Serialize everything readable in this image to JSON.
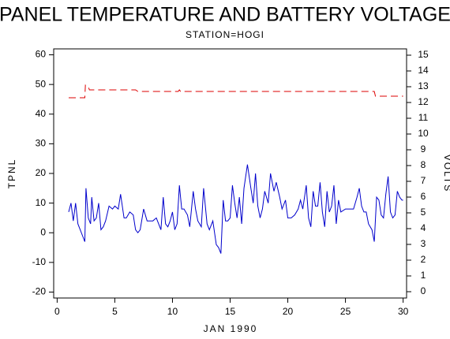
{
  "chart_data": {
    "type": "line",
    "title": "PANEL TEMPERATURE AND BATTERY VOLTAGE",
    "subtitle": "STATION=HOGI",
    "x_label": "JAN 1990",
    "y_label": "TPNL",
    "y2_label": "VOLTS",
    "xlim": [
      -0.3,
      30.3
    ],
    "xticks": [
      0,
      5,
      10,
      15,
      20,
      25,
      30
    ],
    "ylim": [
      -22,
      62
    ],
    "yticks": [
      -20,
      -10,
      0,
      10,
      20,
      30,
      40,
      50,
      60
    ],
    "y2lim": [
      -0.4,
      15.4
    ],
    "y2ticks": [
      0,
      1,
      2,
      3,
      4,
      5,
      6,
      7,
      8,
      9,
      10,
      11,
      12,
      13,
      14,
      15
    ],
    "series": [
      {
        "name": "TPNL",
        "color": "#0000cc",
        "dash": false,
        "x": [
          1.0,
          1.2,
          1.4,
          1.6,
          1.8,
          2.0,
          2.2,
          2.4,
          2.5,
          2.7,
          2.9,
          3.0,
          3.2,
          3.4,
          3.6,
          3.8,
          4.0,
          4.2,
          4.5,
          4.8,
          5.0,
          5.3,
          5.5,
          5.8,
          6.0,
          6.3,
          6.6,
          6.8,
          7.0,
          7.2,
          7.5,
          7.8,
          8.0,
          8.3,
          8.6,
          8.8,
          9.0,
          9.2,
          9.4,
          9.6,
          9.8,
          10.0,
          10.2,
          10.4,
          10.6,
          10.8,
          11.0,
          11.3,
          11.5,
          11.8,
          12.0,
          12.2,
          12.5,
          12.7,
          13.0,
          13.2,
          13.5,
          13.8,
          14.0,
          14.2,
          14.4,
          14.6,
          14.8,
          15.0,
          15.2,
          15.4,
          15.6,
          15.8,
          16.0,
          16.2,
          16.5,
          16.8,
          17.0,
          17.2,
          17.4,
          17.6,
          17.8,
          18.0,
          18.3,
          18.5,
          18.8,
          19.0,
          19.3,
          19.5,
          19.8,
          20.0,
          20.3,
          20.6,
          20.9,
          21.1,
          21.3,
          21.6,
          21.8,
          22.0,
          22.2,
          22.4,
          22.6,
          22.8,
          23.0,
          23.2,
          23.4,
          23.6,
          23.8,
          24.0,
          24.2,
          24.4,
          24.6,
          25.0,
          25.4,
          25.7,
          26.0,
          26.2,
          26.4,
          26.6,
          26.8,
          27.0,
          27.3,
          27.5,
          27.7,
          27.9,
          28.1,
          28.3,
          28.5,
          28.7,
          28.9,
          29.1,
          29.3,
          29.5,
          29.7,
          29.9,
          30.0
        ],
        "values": [
          7,
          10,
          4,
          10,
          3,
          1,
          -1,
          -3,
          15,
          5,
          3,
          12,
          4,
          5,
          10,
          1,
          2,
          4,
          9,
          8,
          9,
          8,
          13,
          5,
          5,
          7,
          6,
          1,
          0,
          1,
          8,
          4,
          4,
          4,
          5,
          3,
          1,
          12,
          3,
          2,
          4,
          7,
          1,
          3,
          16,
          8,
          8,
          6,
          2,
          14,
          8,
          4,
          2,
          15,
          3,
          1,
          4,
          -4,
          -5,
          -7,
          11,
          4,
          4,
          5,
          16,
          10,
          5,
          12,
          3,
          15,
          23,
          15,
          10,
          20,
          9,
          5,
          8,
          14,
          10,
          20,
          14,
          17,
          12,
          8,
          11,
          5,
          5,
          6,
          8,
          11,
          8,
          16,
          5,
          2,
          14,
          9,
          9,
          17,
          7,
          2,
          14,
          7,
          9,
          16,
          3,
          11,
          7,
          8,
          8,
          8,
          12,
          15,
          9,
          7,
          7,
          3,
          1,
          -3,
          12,
          11,
          6,
          5,
          13,
          19,
          7,
          5,
          6,
          14,
          12,
          11,
          11
        ]
      },
      {
        "name": "VOLTS",
        "color": "#dd0000",
        "dash": true,
        "axis": "y2",
        "x": [
          1.0,
          2.4,
          2.45,
          2.7,
          2.8,
          6.8,
          7.0,
          10.5,
          10.6,
          10.7,
          27.5,
          27.6,
          30.0
        ],
        "values": [
          12.3,
          12.3,
          13.1,
          13.0,
          12.8,
          12.8,
          12.7,
          12.7,
          12.8,
          12.7,
          12.7,
          12.4,
          12.4
        ]
      }
    ]
  }
}
